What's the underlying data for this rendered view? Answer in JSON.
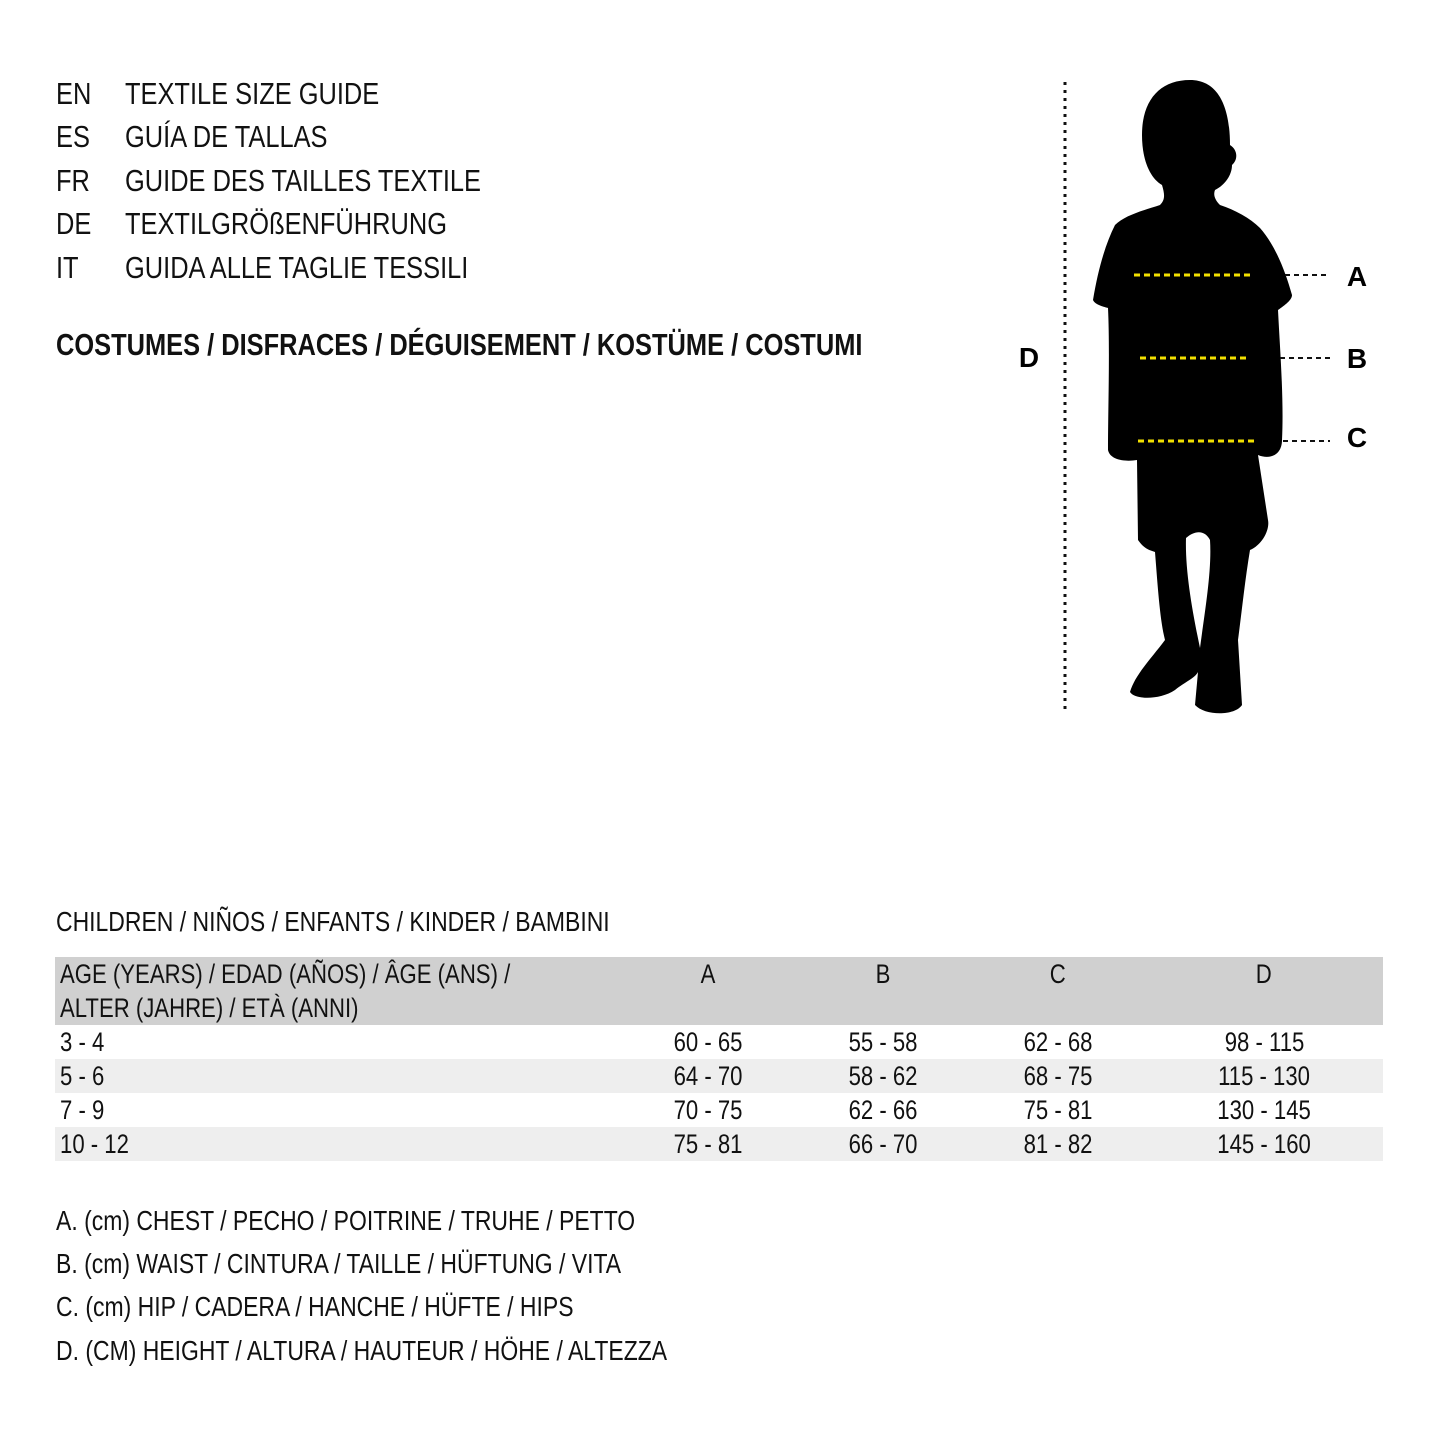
{
  "header": {
    "languages": [
      {
        "code": "EN",
        "text": "TEXTILE SIZE GUIDE"
      },
      {
        "code": "ES",
        "text": "GUÍA DE TALLAS"
      },
      {
        "code": "FR",
        "text": "GUIDE DES TAILLES TEXTILE"
      },
      {
        "code": "DE",
        "text": "TEXTILGRÖßENFÜHRUNG"
      },
      {
        "code": "IT",
        "text": "GUIDA ALLE TAGLIE TESSILI"
      }
    ],
    "category": "COSTUMES / DISFRACES / DÉGUISEMENT / KOSTÜME / COSTUMI"
  },
  "figure": {
    "labels": {
      "a": "A",
      "b": "B",
      "c": "C",
      "d": "D"
    },
    "measure_line_color": "#f2e000",
    "silhouette_color": "#000000"
  },
  "table": {
    "title": "CHILDREN / NIÑOS / ENFANTS / KINDER / BAMBINI",
    "headers": {
      "age_line1": "AGE (YEARS) / EDAD (AÑOS) / ÂGE (ANS) /",
      "age_line2": "ALTER (JAHRE) / ETÀ (ANNI)",
      "a": "A",
      "b": "B",
      "c": "C",
      "d": "D"
    },
    "rows": [
      {
        "age": "3 - 4",
        "a": "60 - 65",
        "b": "55 - 58",
        "c": "62 - 68",
        "d": "98 - 115"
      },
      {
        "age": "5 - 6",
        "a": "64 - 70",
        "b": "58 - 62",
        "c": "68 - 75",
        "d": "115 - 130"
      },
      {
        "age": "7 - 9",
        "a": "70 - 75",
        "b": "62 - 66",
        "c": "75 - 81",
        "d": "130 - 145"
      },
      {
        "age": "10 - 12",
        "a": "75 - 81",
        "b": "66 - 70",
        "c": "81 - 82",
        "d": "145 - 160"
      }
    ],
    "header_bg": "#d0d0d0",
    "alt_row_bg": "#eeeeee"
  },
  "legend": [
    "A. (cm) CHEST / PECHO / POITRINE / TRUHE / PETTO",
    "B. (cm) WAIST / CINTURA / TAILLE / HÜFTUNG / VITA",
    "C. (cm) HIP / CADERA / HANCHE / HÜFTE / HIPS",
    "D. (CM) HEIGHT / ALTURA / HAUTEUR / HÖHE / ALTEZZA"
  ]
}
